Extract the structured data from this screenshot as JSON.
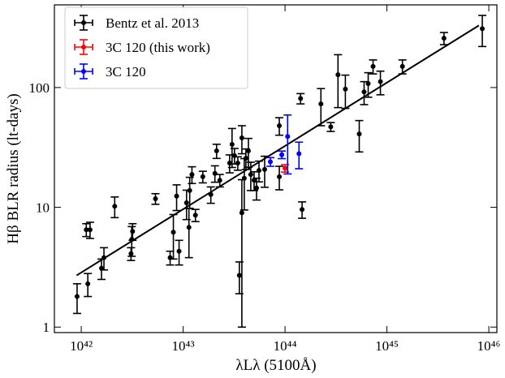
{
  "chart_data": {
    "type": "errorbar-scatter",
    "xlabel": "λLλ (5100Å)",
    "ylabel": "Hβ BLR radius (lt-days)",
    "xscale": "log",
    "yscale": "log",
    "xlim": [
      5.45e+41,
      1.2e+46
    ],
    "ylim": [
      0.9,
      490
    ],
    "xticks": [
      {
        "value": 1e+42,
        "label": "10⁴²"
      },
      {
        "value": 1e+43,
        "label": "10⁴³"
      },
      {
        "value": 1e+44,
        "label": "10⁴⁴"
      },
      {
        "value": 1e+45,
        "label": "10⁴⁵"
      },
      {
        "value": 1e+46,
        "label": "10⁴⁶"
      }
    ],
    "yticks": [
      1,
      10,
      100
    ],
    "legend": "upper left",
    "series": [
      {
        "name": "Bentz et al. 2013",
        "color": "#000000",
        "x": [
          9.1e+41,
          1.16e+42,
          1.12e+42,
          1.22e+42,
          1.58e+42,
          1.67e+42,
          2.13e+42,
          3.08e+42,
          3.13e+42,
          3.19e+42,
          5.35e+42,
          7.45e+42,
          8.02e+42,
          8.63e+42,
          9.12e+42,
          1.08e+43,
          1.14e+43,
          1.16e+43,
          1.22e+43,
          1.32e+43,
          1.56e+43,
          1.87e+43,
          2.05e+43,
          2.13e+43,
          2.29e+43,
          2.86e+43,
          3.02e+43,
          3.19e+43,
          3.44e+43,
          3.56e+43,
          3.77e+43,
          3.77e+43,
          3.98e+43,
          4.13e+43,
          4.37e+43,
          4.61e+43,
          4.97e+43,
          5.25e+43,
          5.55e+43,
          6.31e+43,
          8.79e+43,
          8.79e+43,
          1.42e+44,
          1.47e+44,
          2.25e+44,
          2.81e+44,
          3.31e+44,
          3.91e+44,
          5.35e+44,
          5.97e+44,
          6.55e+44,
          7.31e+44,
          8.63e+44,
          1.42e+45,
          3.63e+45,
          8.63e+45
        ],
        "values": [
          1.8,
          2.3,
          6.5,
          6.5,
          3.1,
          3.8,
          10.2,
          4.1,
          5.4,
          6.3,
          11.8,
          3.8,
          6.2,
          12.4,
          4.3,
          10.9,
          6.8,
          13.8,
          18.8,
          8.6,
          18,
          12.8,
          19.2,
          29.6,
          16.8,
          23.4,
          33.5,
          27,
          23.4,
          2.7,
          9,
          38,
          17.5,
          25.7,
          29.6,
          18.8,
          16.8,
          14.5,
          20.3,
          20.7,
          18,
          48,
          81,
          9.6,
          73,
          47,
          128,
          97,
          41,
          92,
          108,
          150,
          112,
          150,
          258,
          310
        ],
        "yerr": [
          0.5,
          0.5,
          0.8,
          1,
          0.6,
          0.8,
          2,
          0.5,
          1.5,
          1,
          1.2,
          0.5,
          2.5,
          3,
          1,
          3,
          3,
          4,
          3,
          1,
          2,
          2,
          3,
          4,
          2,
          4,
          12,
          4,
          3,
          0.8,
          8,
          10,
          8,
          5,
          8,
          5,
          3,
          3,
          4,
          6,
          4,
          8,
          8,
          1.5,
          25,
          4,
          60,
          30,
          12,
          20,
          25,
          20,
          25,
          20,
          30,
          90
        ]
      },
      {
        "name": "3C 120 (this work)",
        "color": "#ff0000",
        "x": [
          1e+44
        ],
        "values": [
          21.2
        ],
        "yerr": [
          1.5
        ]
      },
      {
        "name": "3C 120",
        "color": "#0000ff",
        "x": [
          7.18e+43,
          9.29e+43,
          1.06e+44,
          1.37e+44
        ],
        "values": [
          24,
          27.5,
          39,
          28
        ],
        "yerr": [
          2,
          2,
          20,
          7
        ]
      }
    ],
    "fit_line": {
      "color": "#000000",
      "x": [
        9e+41,
        8e+45
      ],
      "values": [
        2.7,
        330
      ]
    }
  }
}
